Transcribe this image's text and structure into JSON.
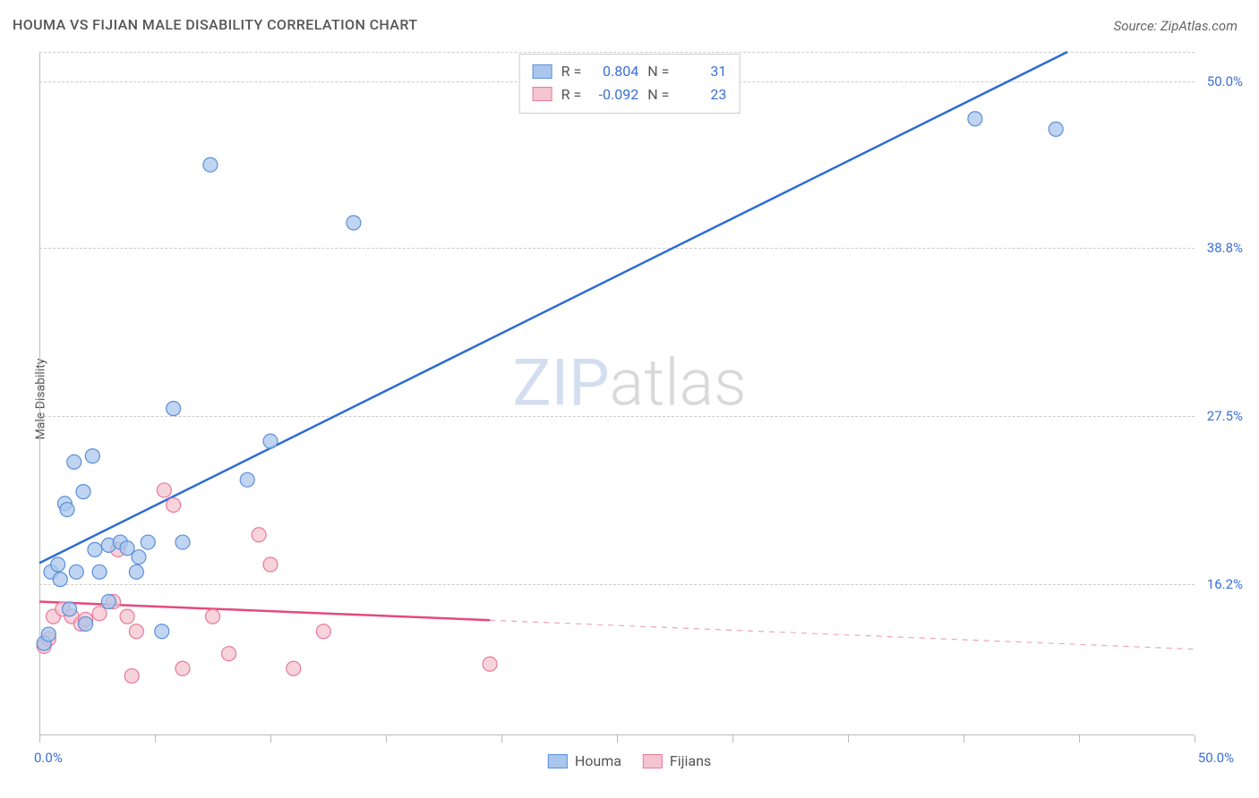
{
  "title": "HOUMA VS FIJIAN MALE DISABILITY CORRELATION CHART",
  "source": "Source: ZipAtlas.com",
  "ylabel": "Male Disability",
  "watermark_bold": "ZIP",
  "watermark_thin": "atlas",
  "chart": {
    "type": "scatter",
    "background_color": "#ffffff",
    "grid_color": "#cccccc",
    "axis_color": "#bbbbbb",
    "tick_color": "#3b6fd6",
    "label_color": "#555555",
    "title_color": "#555555",
    "title_fontsize": 16,
    "label_fontsize": 14,
    "tick_fontsize": 15,
    "xlim": [
      0,
      50
    ],
    "ylim": [
      6,
      52
    ],
    "x_ticks": [
      0,
      5,
      10,
      15,
      20,
      25,
      30,
      35,
      40,
      45,
      50
    ],
    "x_tick_labels": {
      "min": "0.0%",
      "max": "50.0%"
    },
    "y_gridlines": [
      16.2,
      27.5,
      38.8,
      50.0,
      52.0
    ],
    "y_tick_labels": [
      "16.2%",
      "27.5%",
      "38.8%",
      "50.0%"
    ],
    "marker_radius": 8,
    "marker_stroke_width": 1.2,
    "trend_line_width": 2.5,
    "series": [
      {
        "name": "Houma",
        "fill_color": "#a9c7ec",
        "stroke_color": "#5b8fd8",
        "trend_color": "#2d6cd4",
        "trend_start": [
          0,
          17.6
        ],
        "trend_end": [
          44.5,
          52.0
        ],
        "trend_dashed_from": null,
        "R": "0.804",
        "N": "31",
        "points": [
          [
            0.2,
            12.2
          ],
          [
            0.4,
            12.8
          ],
          [
            0.5,
            17.0
          ],
          [
            0.8,
            17.5
          ],
          [
            0.9,
            16.5
          ],
          [
            1.1,
            21.6
          ],
          [
            1.2,
            21.2
          ],
          [
            1.3,
            14.5
          ],
          [
            1.5,
            24.4
          ],
          [
            1.6,
            17.0
          ],
          [
            1.9,
            22.4
          ],
          [
            2.0,
            13.5
          ],
          [
            2.3,
            24.8
          ],
          [
            2.4,
            18.5
          ],
          [
            2.6,
            17.0
          ],
          [
            3.0,
            18.8
          ],
          [
            3.0,
            15.0
          ],
          [
            3.5,
            19.0
          ],
          [
            3.8,
            18.6
          ],
          [
            4.2,
            17.0
          ],
          [
            4.3,
            18.0
          ],
          [
            4.7,
            19.0
          ],
          [
            5.3,
            13.0
          ],
          [
            5.8,
            28.0
          ],
          [
            6.2,
            19.0
          ],
          [
            7.4,
            44.4
          ],
          [
            9.0,
            23.2
          ],
          [
            10.0,
            25.8
          ],
          [
            13.6,
            40.5
          ],
          [
            40.5,
            47.5
          ],
          [
            44.0,
            46.8
          ]
        ]
      },
      {
        "name": "Fijians",
        "fill_color": "#f4c4d0",
        "stroke_color": "#e77a9b",
        "trend_color": "#e64a7b",
        "trend_start": [
          0,
          15.0
        ],
        "trend_end": [
          50,
          11.8
        ],
        "trend_dashed_from": 19.5,
        "R": "-0.092",
        "N": "23",
        "points": [
          [
            0.2,
            12.0
          ],
          [
            0.4,
            12.5
          ],
          [
            0.6,
            14.0
          ],
          [
            1.0,
            14.5
          ],
          [
            1.4,
            14.0
          ],
          [
            1.8,
            13.5
          ],
          [
            2.0,
            13.8
          ],
          [
            2.6,
            14.2
          ],
          [
            3.2,
            15.0
          ],
          [
            3.4,
            18.5
          ],
          [
            3.8,
            14.0
          ],
          [
            4.0,
            10.0
          ],
          [
            4.2,
            13.0
          ],
          [
            5.4,
            22.5
          ],
          [
            5.8,
            21.5
          ],
          [
            6.2,
            10.5
          ],
          [
            7.5,
            14.0
          ],
          [
            8.2,
            11.5
          ],
          [
            9.5,
            19.5
          ],
          [
            10.0,
            17.5
          ],
          [
            11.0,
            10.5
          ],
          [
            12.3,
            13.0
          ],
          [
            19.5,
            10.8
          ]
        ]
      }
    ]
  },
  "stats_legend": {
    "r_label": "R =",
    "n_label": "N ="
  },
  "legend_labels": {
    "houma": "Houma",
    "fijians": "Fijians"
  }
}
